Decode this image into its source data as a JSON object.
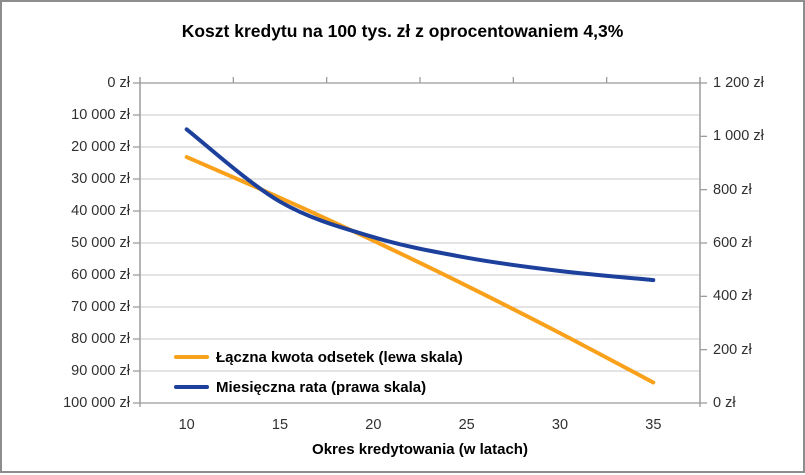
{
  "window": {
    "background": "#ffffff",
    "border_color": "#8d8d8d"
  },
  "chart_data": {
    "type": "line",
    "title": "Koszt kredytu na 100 tys. zł z oprocentowaniem 4,3%",
    "xlabel": "Okres kredytowania (w latach)",
    "x": [
      10,
      15,
      20,
      25,
      30,
      35
    ],
    "x_tick_labels": [
      "10",
      "15",
      "20",
      "25",
      "30",
      "35"
    ],
    "series": [
      {
        "name": "Łączna kwota odsetek (lewa skala)",
        "axis": "left",
        "color": "#F9A11B",
        "values": [
          23150,
          35860,
          49260,
          63360,
          78160,
          93600
        ]
      },
      {
        "name": "Miesięczna rata (prawa skala)",
        "axis": "right",
        "color": "#1C409B",
        "values": [
          1026,
          755,
          622,
          545,
          495,
          461
        ]
      }
    ],
    "left_axis": {
      "range": [
        0,
        100000
      ],
      "inverted": true,
      "tick_step": 10000,
      "tick_labels": [
        "0 zł",
        "10 000 zł",
        "20 000 zł",
        "30 000 zł",
        "40 000 zł",
        "50 000 zł",
        "60 000 zł",
        "70 000 zł",
        "80 000 zł",
        "90 000 zł",
        "100 000 zł"
      ]
    },
    "right_axis": {
      "range": [
        0,
        1200
      ],
      "tick_step": 200,
      "tick_labels": [
        "1 200 zł",
        "1 000 zł",
        "800 zł",
        "600 zł",
        "400 zł",
        "200 zł",
        "0 zł"
      ]
    },
    "grid": true,
    "legend_position": "inside-bottom-left",
    "colors": {
      "gridline": "#c9c9c9",
      "axis": "#9d9d9d"
    }
  }
}
